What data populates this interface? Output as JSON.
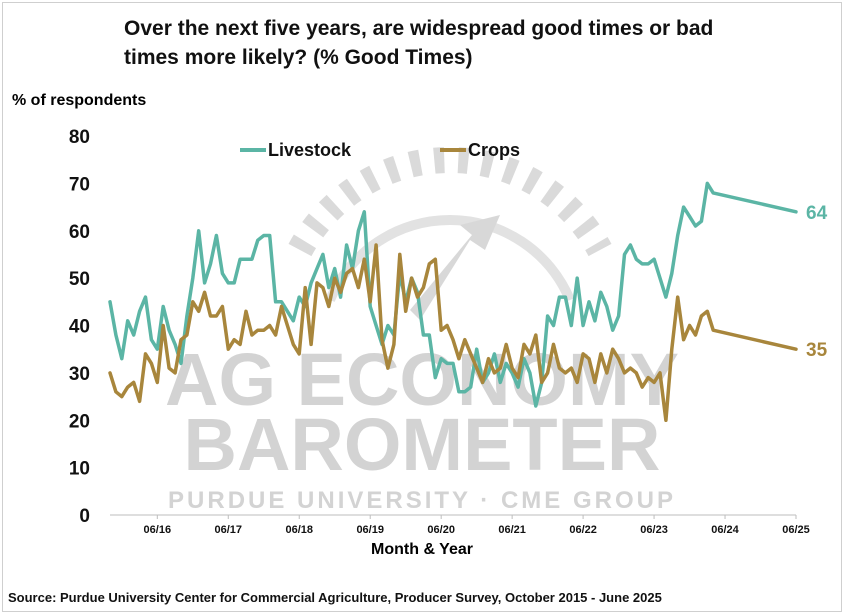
{
  "chart_data": {
    "type": "line",
    "title": "Over the next five years, are widespread good times or bad times more likely? (% Good Times)",
    "ylabel": "% of respondents",
    "xlabel": "Month & Year",
    "ylim": [
      0,
      80
    ],
    "yticks": [
      0,
      10,
      20,
      30,
      40,
      50,
      60,
      70,
      80
    ],
    "x_start": "2015-10",
    "x_end": "2025-06",
    "x_tick_labels": [
      "06/16",
      "06/17",
      "06/18",
      "06/19",
      "06/20",
      "06/21",
      "06/22",
      "06/23",
      "06/24",
      "06/25"
    ],
    "x_tick_months": [
      "2016-06",
      "2017-06",
      "2018-06",
      "2019-06",
      "2020-06",
      "2021-06",
      "2022-06",
      "2023-06",
      "2024-06",
      "2025-06"
    ],
    "grid": false,
    "legend_position": "top-left",
    "series": [
      {
        "name": "Livestock",
        "color": "#5bb5a5",
        "end_label": "64",
        "points": [
          [
            "2015-10",
            45
          ],
          [
            "2015-11",
            38
          ],
          [
            "2015-12",
            33
          ],
          [
            "2016-01",
            41
          ],
          [
            "2016-02",
            38
          ],
          [
            "2016-03",
            43
          ],
          [
            "2016-04",
            46
          ],
          [
            "2016-05",
            37
          ],
          [
            "2016-06",
            35
          ],
          [
            "2016-07",
            44
          ],
          [
            "2016-08",
            39
          ],
          [
            "2016-09",
            36
          ],
          [
            "2016-10",
            32
          ],
          [
            "2016-11",
            42
          ],
          [
            "2016-12",
            50
          ],
          [
            "2017-01",
            60
          ],
          [
            "2017-02",
            49
          ],
          [
            "2017-03",
            53
          ],
          [
            "2017-04",
            59
          ],
          [
            "2017-05",
            51
          ],
          [
            "2017-06",
            49
          ],
          [
            "2017-07",
            49
          ],
          [
            "2017-08",
            54
          ],
          [
            "2017-09",
            54
          ],
          [
            "2017-10",
            54
          ],
          [
            "2017-11",
            58
          ],
          [
            "2017-12",
            59
          ],
          [
            "2018-01",
            59
          ],
          [
            "2018-02",
            45
          ],
          [
            "2018-03",
            45
          ],
          [
            "2018-04",
            43
          ],
          [
            "2018-05",
            41
          ],
          [
            "2018-06",
            46
          ],
          [
            "2018-07",
            44
          ],
          [
            "2018-08",
            49
          ],
          [
            "2018-09",
            52
          ],
          [
            "2018-10",
            55
          ],
          [
            "2018-11",
            48
          ],
          [
            "2018-12",
            52
          ],
          [
            "2019-01",
            46
          ],
          [
            "2019-02",
            57
          ],
          [
            "2019-03",
            52
          ],
          [
            "2019-04",
            60
          ],
          [
            "2019-05",
            64
          ],
          [
            "2019-06",
            44
          ],
          [
            "2019-07",
            40
          ],
          [
            "2019-08",
            36
          ],
          [
            "2019-09",
            40
          ],
          [
            "2019-10",
            38
          ],
          [
            "2019-11",
            51
          ],
          [
            "2019-12",
            45
          ],
          [
            "2020-01",
            50
          ],
          [
            "2020-02",
            47
          ],
          [
            "2020-03",
            38
          ],
          [
            "2020-04",
            38
          ],
          [
            "2020-05",
            29
          ],
          [
            "2020-06",
            33
          ],
          [
            "2020-07",
            32
          ],
          [
            "2020-08",
            32
          ],
          [
            "2020-09",
            26
          ],
          [
            "2020-10",
            26
          ],
          [
            "2020-11",
            27
          ],
          [
            "2020-12",
            35
          ],
          [
            "2021-01",
            28
          ],
          [
            "2021-02",
            30
          ],
          [
            "2021-03",
            34
          ],
          [
            "2021-04",
            28
          ],
          [
            "2021-05",
            32
          ],
          [
            "2021-06",
            30
          ],
          [
            "2021-07",
            27
          ],
          [
            "2021-08",
            33
          ],
          [
            "2021-09",
            30
          ],
          [
            "2021-10",
            23
          ],
          [
            "2021-11",
            28
          ],
          [
            "2021-12",
            42
          ],
          [
            "2022-01",
            40
          ],
          [
            "2022-02",
            46
          ],
          [
            "2022-03",
            46
          ],
          [
            "2022-04",
            40
          ],
          [
            "2022-05",
            50
          ],
          [
            "2022-06",
            40
          ],
          [
            "2022-07",
            45
          ],
          [
            "2022-08",
            41
          ],
          [
            "2022-09",
            47
          ],
          [
            "2022-10",
            44
          ],
          [
            "2022-11",
            39
          ],
          [
            "2022-12",
            42
          ],
          [
            "2023-01",
            55
          ],
          [
            "2023-02",
            57
          ],
          [
            "2023-03",
            54
          ],
          [
            "2023-04",
            53
          ],
          [
            "2023-05",
            53
          ],
          [
            "2023-06",
            54
          ],
          [
            "2023-07",
            50
          ],
          [
            "2023-08",
            46
          ],
          [
            "2023-09",
            51
          ],
          [
            "2023-10",
            59
          ],
          [
            "2023-11",
            65
          ],
          [
            "2023-12",
            63
          ],
          [
            "2024-01",
            61
          ],
          [
            "2024-02",
            62
          ],
          [
            "2024-03",
            70
          ],
          [
            "2024-04",
            68
          ],
          [
            "2025-06",
            64
          ]
        ]
      },
      {
        "name": "Crops",
        "color": "#a8863c",
        "end_label": "35",
        "points": [
          [
            "2015-10",
            30
          ],
          [
            "2015-11",
            26
          ],
          [
            "2015-12",
            25
          ],
          [
            "2016-01",
            27
          ],
          [
            "2016-02",
            28
          ],
          [
            "2016-03",
            24
          ],
          [
            "2016-04",
            34
          ],
          [
            "2016-05",
            32
          ],
          [
            "2016-06",
            28
          ],
          [
            "2016-07",
            40
          ],
          [
            "2016-08",
            31
          ],
          [
            "2016-09",
            30
          ],
          [
            "2016-10",
            37
          ],
          [
            "2016-11",
            38
          ],
          [
            "2016-12",
            45
          ],
          [
            "2017-01",
            43
          ],
          [
            "2017-02",
            47
          ],
          [
            "2017-03",
            42
          ],
          [
            "2017-04",
            42
          ],
          [
            "2017-05",
            44
          ],
          [
            "2017-06",
            35
          ],
          [
            "2017-07",
            37
          ],
          [
            "2017-08",
            36
          ],
          [
            "2017-09",
            43
          ],
          [
            "2017-10",
            38
          ],
          [
            "2017-11",
            39
          ],
          [
            "2017-12",
            39
          ],
          [
            "2018-01",
            40
          ],
          [
            "2018-02",
            38
          ],
          [
            "2018-03",
            44
          ],
          [
            "2018-04",
            40
          ],
          [
            "2018-05",
            36
          ],
          [
            "2018-06",
            34
          ],
          [
            "2018-07",
            48
          ],
          [
            "2018-08",
            36
          ],
          [
            "2018-09",
            49
          ],
          [
            "2018-10",
            48
          ],
          [
            "2018-11",
            44
          ],
          [
            "2018-12",
            50
          ],
          [
            "2019-01",
            47
          ],
          [
            "2019-02",
            51
          ],
          [
            "2019-03",
            52
          ],
          [
            "2019-04",
            48
          ],
          [
            "2019-05",
            54
          ],
          [
            "2019-06",
            45
          ],
          [
            "2019-07",
            57
          ],
          [
            "2019-08",
            37
          ],
          [
            "2019-09",
            31
          ],
          [
            "2019-10",
            36
          ],
          [
            "2019-11",
            55
          ],
          [
            "2019-12",
            43
          ],
          [
            "2020-01",
            50
          ],
          [
            "2020-02",
            46
          ],
          [
            "2020-03",
            48
          ],
          [
            "2020-04",
            53
          ],
          [
            "2020-05",
            54
          ],
          [
            "2020-06",
            39
          ],
          [
            "2020-07",
            40
          ],
          [
            "2020-08",
            37
          ],
          [
            "2020-09",
            33
          ],
          [
            "2020-10",
            37
          ],
          [
            "2020-11",
            34
          ],
          [
            "2020-12",
            31
          ],
          [
            "2021-01",
            28
          ],
          [
            "2021-02",
            33
          ],
          [
            "2021-03",
            30
          ],
          [
            "2021-04",
            31
          ],
          [
            "2021-05",
            36
          ],
          [
            "2021-06",
            31
          ],
          [
            "2021-07",
            29
          ],
          [
            "2021-08",
            36
          ],
          [
            "2021-09",
            34
          ],
          [
            "2021-10",
            38
          ],
          [
            "2021-11",
            28
          ],
          [
            "2021-12",
            30
          ],
          [
            "2022-01",
            36
          ],
          [
            "2022-02",
            31
          ],
          [
            "2022-03",
            30
          ],
          [
            "2022-04",
            31
          ],
          [
            "2022-05",
            28
          ],
          [
            "2022-06",
            34
          ],
          [
            "2022-07",
            33
          ],
          [
            "2022-08",
            28
          ],
          [
            "2022-09",
            34
          ],
          [
            "2022-10",
            30
          ],
          [
            "2022-11",
            35
          ],
          [
            "2022-12",
            33
          ],
          [
            "2023-01",
            30
          ],
          [
            "2023-02",
            31
          ],
          [
            "2023-03",
            30
          ],
          [
            "2023-04",
            27
          ],
          [
            "2023-05",
            29
          ],
          [
            "2023-06",
            28
          ],
          [
            "2023-07",
            30
          ],
          [
            "2023-08",
            20
          ],
          [
            "2023-09",
            35
          ],
          [
            "2023-10",
            46
          ],
          [
            "2023-11",
            37
          ],
          [
            "2023-12",
            40
          ],
          [
            "2024-01",
            38
          ],
          [
            "2024-02",
            42
          ],
          [
            "2024-03",
            43
          ],
          [
            "2024-04",
            39
          ],
          [
            "2025-06",
            35
          ]
        ]
      }
    ]
  },
  "source": "Source: Purdue University Center for Commercial Agriculture, Producer Survey, October 2015 - June 2025",
  "watermark": {
    "line1": "AG ECONOMY",
    "line2": "BAROMETER",
    "line3": "PURDUE UNIVERSITY · CME GROUP"
  }
}
